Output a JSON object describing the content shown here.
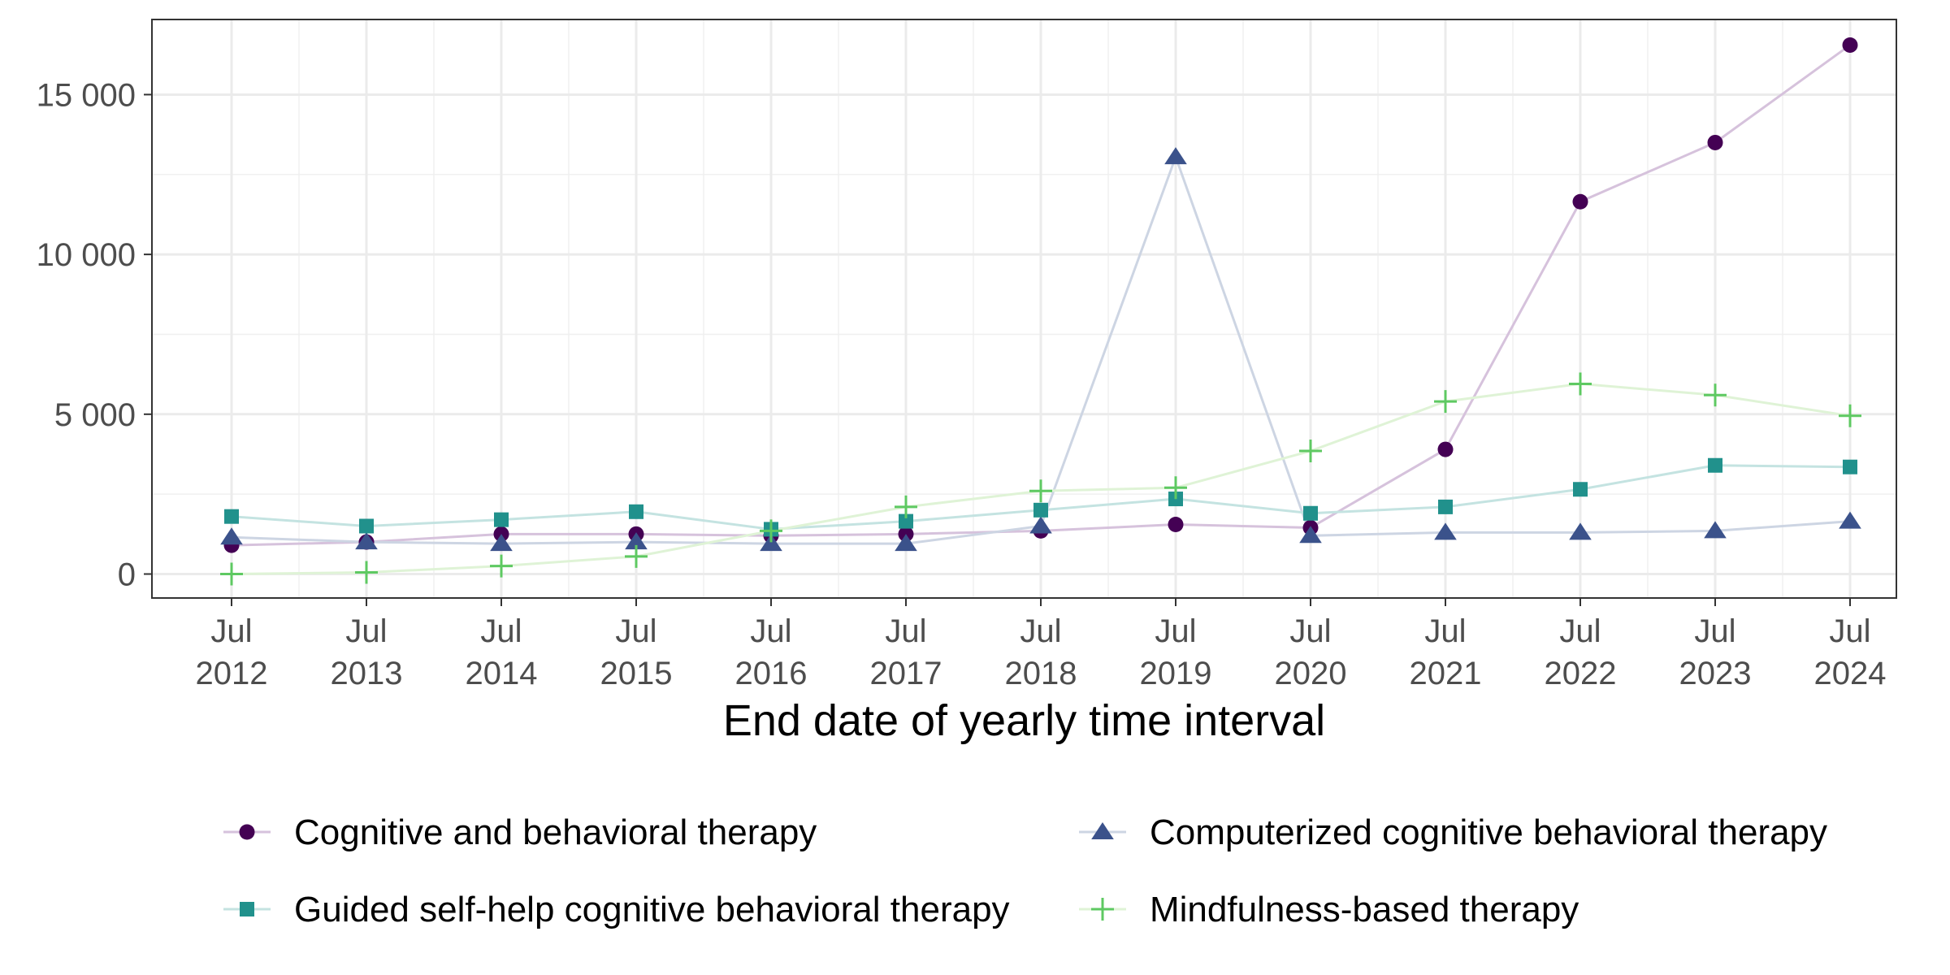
{
  "chart_data": {
    "type": "line",
    "title": "",
    "xlabel": "End date of yearly time interval",
    "ylabel": "",
    "x": [
      "Jul 2012",
      "Jul 2013",
      "Jul 2014",
      "Jul 2015",
      "Jul 2016",
      "Jul 2017",
      "Jul 2018",
      "Jul 2019",
      "Jul 2020",
      "Jul 2021",
      "Jul 2022",
      "Jul 2023",
      "Jul 2024"
    ],
    "x_tick_labels": [
      [
        "Jul",
        "2012"
      ],
      [
        "Jul",
        "2013"
      ],
      [
        "Jul",
        "2014"
      ],
      [
        "Jul",
        "2015"
      ],
      [
        "Jul",
        "2016"
      ],
      [
        "Jul",
        "2017"
      ],
      [
        "Jul",
        "2018"
      ],
      [
        "Jul",
        "2019"
      ],
      [
        "Jul",
        "2020"
      ],
      [
        "Jul",
        "2021"
      ],
      [
        "Jul",
        "2022"
      ],
      [
        "Jul",
        "2023"
      ],
      [
        "Jul",
        "2024"
      ]
    ],
    "y_ticks": [
      0,
      5000,
      10000,
      15000
    ],
    "y_tick_labels": [
      "0",
      "5 000",
      "10 000",
      "15 000"
    ],
    "ylim": [
      -750,
      17350
    ],
    "grid": true,
    "legend_position": "bottom",
    "series": [
      {
        "name": "Cognitive and behavioral therapy",
        "marker": "circle",
        "color": "#440154",
        "line_color": "#d6c2dc",
        "values": [
          900,
          1000,
          1250,
          1250,
          1200,
          1250,
          1350,
          1550,
          1450,
          3900,
          11650,
          13500,
          16550
        ]
      },
      {
        "name": "Computerized cognitive behavioral therapy",
        "marker": "triangle",
        "color": "#3b528b",
        "line_color": "#cdd5e3",
        "values": [
          1150,
          1000,
          950,
          1000,
          950,
          950,
          1500,
          13050,
          1200,
          1300,
          1300,
          1350,
          1650
        ]
      },
      {
        "name": "Guided self-help cognitive behavioral therapy",
        "marker": "square",
        "color": "#21918c",
        "line_color": "#c4e3e1",
        "values": [
          1800,
          1500,
          1700,
          1950,
          1400,
          1650,
          2000,
          2350,
          1900,
          2100,
          2650,
          3400,
          3350
        ]
      },
      {
        "name": "Mindfulness-based therapy",
        "marker": "plus",
        "color": "#5ec962",
        "line_color": "#dff3d6",
        "values": [
          0,
          50,
          250,
          550,
          1350,
          2100,
          2600,
          2700,
          3850,
          5400,
          5950,
          5600,
          4950
        ]
      }
    ]
  }
}
